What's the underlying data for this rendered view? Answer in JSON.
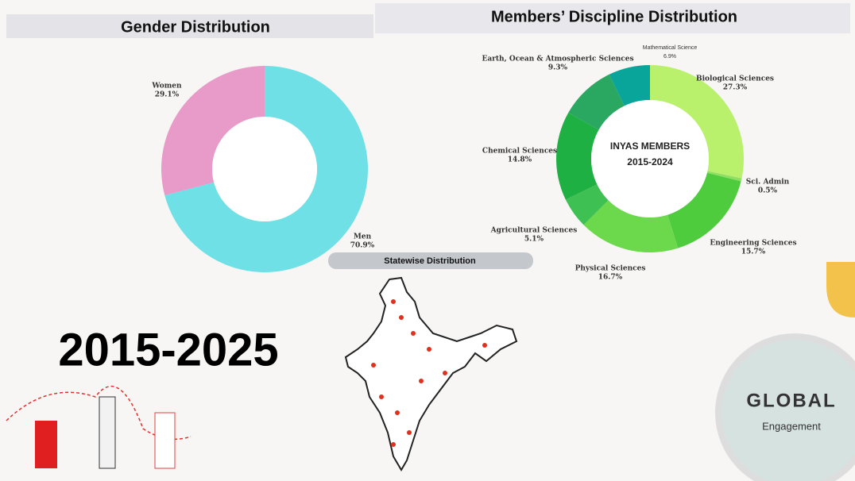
{
  "chart_data": [
    {
      "type": "pie",
      "title": "Gender Distribution",
      "categories": [
        "Women",
        "Men"
      ],
      "values": [
        29.1,
        70.9
      ],
      "value_labels": [
        "29.1%",
        "70.9%"
      ],
      "colors": [
        "#e89ac8",
        "#6fe0e6"
      ]
    },
    {
      "type": "pie",
      "title": "Members’ Discipline Distribution",
      "center_text": [
        "INYAS MEMBERS",
        "2015-2024"
      ],
      "categories": [
        "Biological Sciences",
        "Sci. Admin",
        "Engineering Sciences",
        "Physical Sciences",
        "Agricultural Sciences",
        "Chemical Sciences",
        "Earth, Ocean & Atmospheric Sciences",
        "Mathematical Science"
      ],
      "values": [
        27.3,
        0.5,
        15.7,
        16.7,
        5.1,
        14.8,
        9.3,
        6.9
      ],
      "value_labels": [
        "27.3%",
        "0.5%",
        "15.7%",
        "16.7%",
        "5.1%",
        "14.8%",
        "9.3%",
        "6.9%"
      ],
      "colors": [
        "#b9f06c",
        "#8fe062",
        "#4fcc3e",
        "#6cd84c",
        "#3fc052",
        "#1fb043",
        "#2aa862",
        "#0aa59a"
      ]
    }
  ],
  "map_title": "Statewise Distribution",
  "period": "2015-2025",
  "global": {
    "title": "GLOBAL",
    "subtitle": "Engagement"
  }
}
